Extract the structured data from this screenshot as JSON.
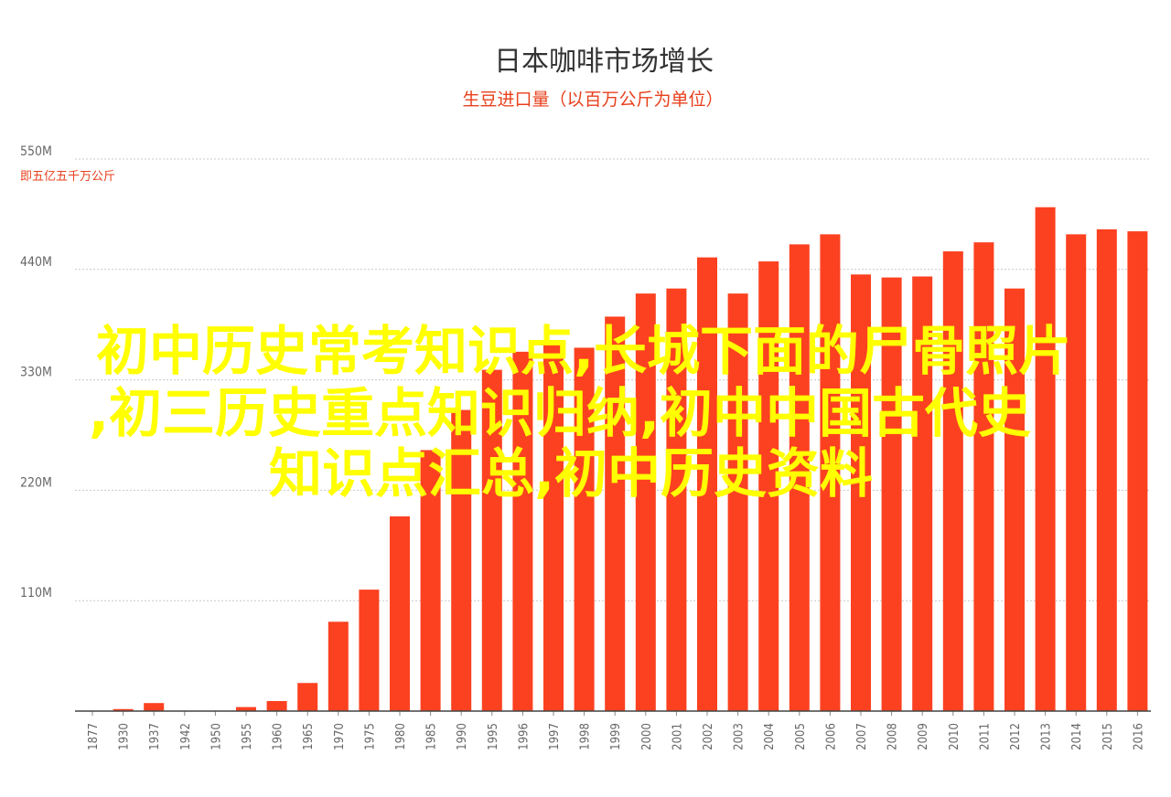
{
  "chart_data": {
    "type": "bar",
    "title": "日本咖啡市场增长",
    "subtitle": "生豆进口量（以百万公斤为单位）",
    "y_unit_label": "即五亿五千万公斤",
    "ylim": [
      0,
      550
    ],
    "y_ticks": [
      "110M",
      "220M",
      "330M",
      "440M",
      "550M"
    ],
    "y_tick_values": [
      110,
      220,
      330,
      440,
      550
    ],
    "grid": true,
    "bar_color": "#fc4120",
    "categories": [
      "1877",
      "1930",
      "1937",
      "1942",
      "1950",
      "1955",
      "1960",
      "1965",
      "1970",
      "1975",
      "1980",
      "1985",
      "1990",
      "1995",
      "1996",
      "1997",
      "1998",
      "1999",
      "2000",
      "2001",
      "2002",
      "2003",
      "2004",
      "2005",
      "2006",
      "2007",
      "2008",
      "2009",
      "2010",
      "2011",
      "2012",
      "2013",
      "2014",
      "2015",
      "2016"
    ],
    "values": [
      0,
      2,
      8,
      0,
      0,
      4,
      10,
      28,
      89,
      121,
      194,
      260,
      300,
      340,
      358,
      365,
      362,
      393,
      416,
      421,
      452,
      416,
      448,
      465,
      475,
      435,
      432,
      433,
      458,
      467,
      421,
      502,
      475,
      480,
      478
    ]
  },
  "overlay_text": {
    "line1": "初中历史常考知识点,长城下面的尸骨照片",
    "line2": ",初三历史重点知识归纳,初中中国古代史",
    "line3": "知识点汇总,初中历史资料"
  }
}
